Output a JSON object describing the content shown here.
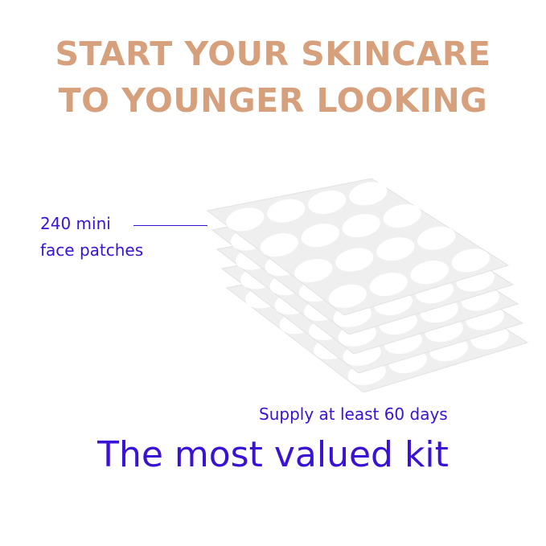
{
  "headline": {
    "line1": "START YOUR SKINCARE",
    "line2": "TO YOUNGER LOOKING"
  },
  "callout": {
    "line1": "240 mini",
    "line2": "face patches"
  },
  "supply_text": "Supply at least 60 days",
  "tagline": "The most valued kit",
  "colors": {
    "headline": "#d6a07c",
    "accent": "#3a12d6"
  }
}
